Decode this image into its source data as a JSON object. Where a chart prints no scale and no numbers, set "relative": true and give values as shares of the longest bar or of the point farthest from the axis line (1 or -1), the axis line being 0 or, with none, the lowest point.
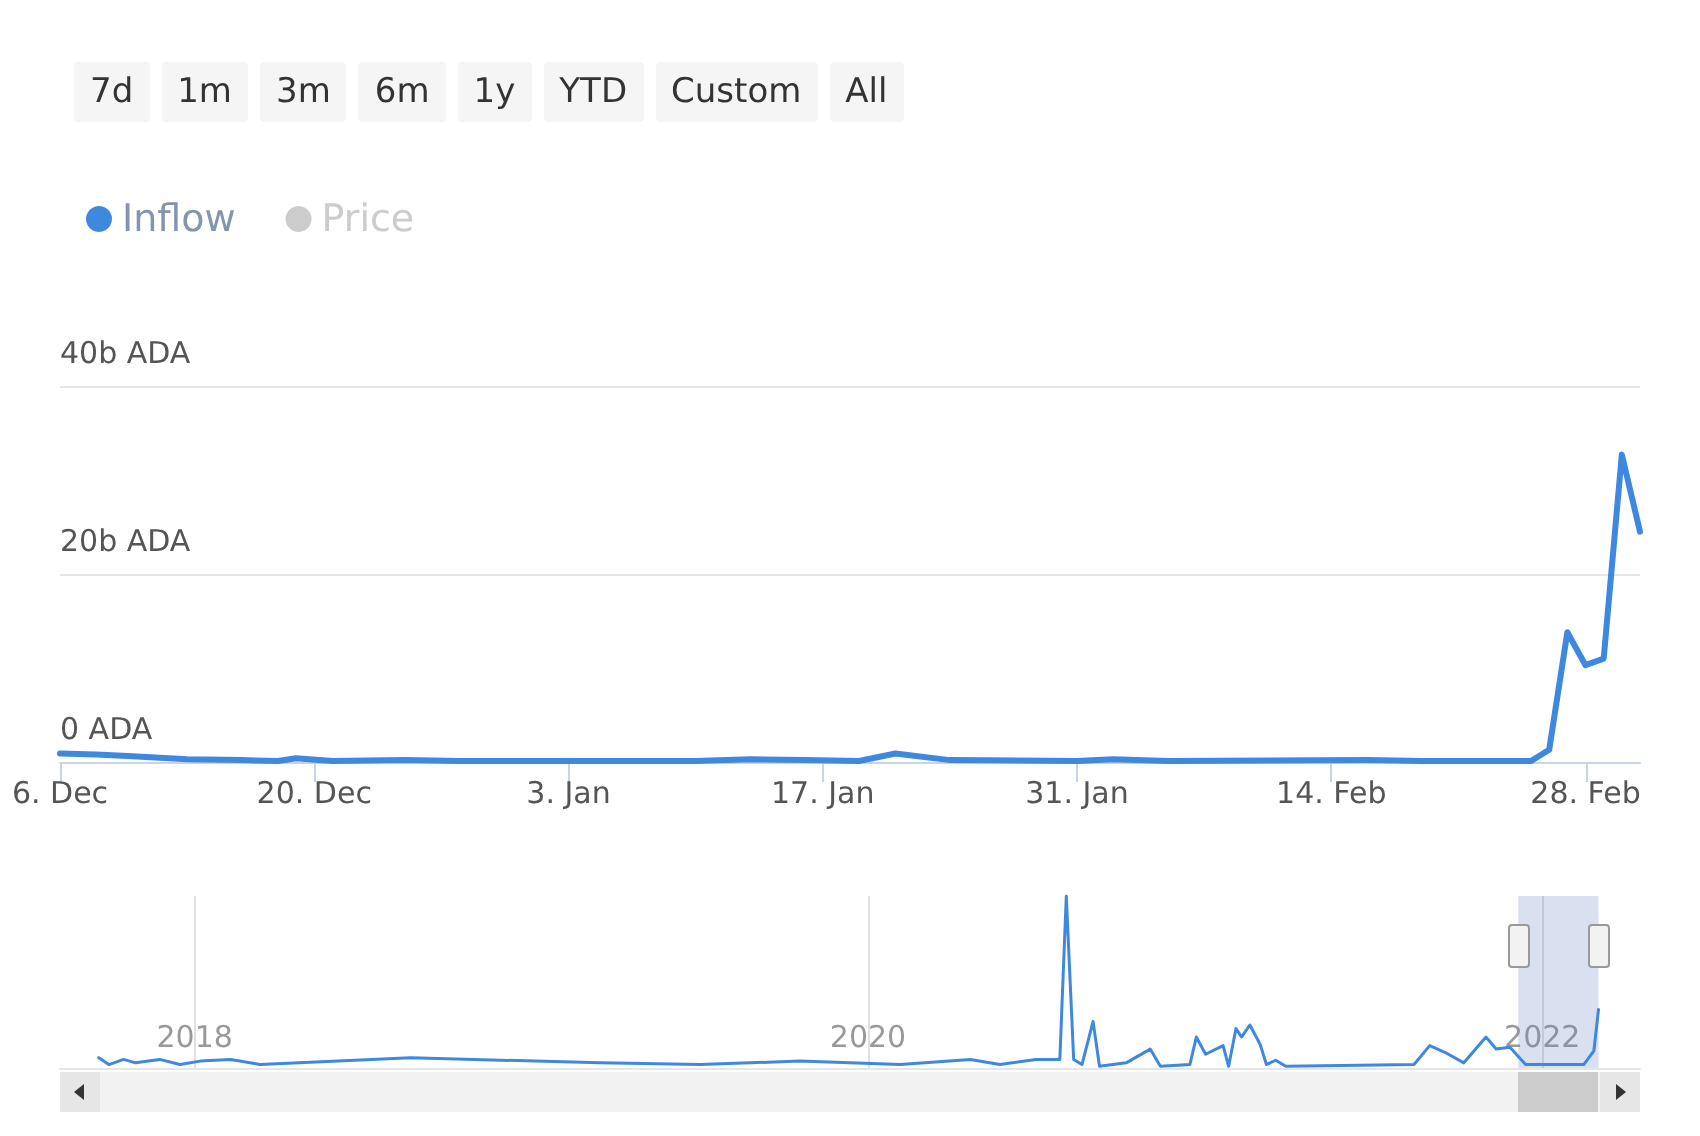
{
  "chart_data": [
    {
      "type": "line",
      "annotations": [
        "7d",
        "1m",
        "3m",
        "6m",
        "1y",
        "YTD",
        "Custom",
        "All"
      ],
      "x": [
        "2021-12-06",
        "2021-12-08",
        "2021-12-10",
        "2021-12-13",
        "2021-12-16",
        "2021-12-18",
        "2021-12-19",
        "2021-12-21",
        "2021-12-25",
        "2021-12-28",
        "2022-01-10",
        "2022-01-13",
        "2022-01-16",
        "2022-01-19",
        "2022-01-21",
        "2022-01-24",
        "2022-01-31",
        "2022-02-02",
        "2022-02-05",
        "2022-02-16",
        "2022-02-19",
        "2022-02-25",
        "2022-02-26",
        "2022-02-27",
        "2022-02-28",
        "2022-03-01",
        "2022-03-02",
        "2022-03-03"
      ],
      "series": [
        {
          "name": "Inflow",
          "color": "#3f88e0",
          "values": [
            0.9,
            0.8,
            0.6,
            0.3,
            0.2,
            0.1,
            0.4,
            0.1,
            0.2,
            0.1,
            0.1,
            0.3,
            0.2,
            0.1,
            0.9,
            0.2,
            0.1,
            0.3,
            0.1,
            0.2,
            0.1,
            0.1,
            1.3,
            13.8,
            10.3,
            11.0,
            32.7,
            24.5
          ]
        },
        {
          "name": "Price",
          "color": "#cccccc",
          "values": [
            null,
            null,
            null,
            null,
            null,
            null,
            null,
            null,
            null,
            null,
            null,
            null,
            null,
            null,
            null,
            null,
            null,
            null,
            null,
            null,
            null,
            null,
            null,
            null,
            null,
            null,
            null,
            null
          ]
        }
      ],
      "xlim": [
        "2021-12-06",
        "2022-03-03"
      ],
      "xticks": [
        {
          "value": "2021-12-06",
          "label": "6. Dec"
        },
        {
          "value": "2021-12-20",
          "label": "20. Dec"
        },
        {
          "value": "2022-01-03",
          "label": "3. Jan"
        },
        {
          "value": "2022-01-17",
          "label": "17. Jan"
        },
        {
          "value": "2022-01-31",
          "label": "31. Jan"
        },
        {
          "value": "2022-02-14",
          "label": "14. Feb"
        },
        {
          "value": "2022-02-28",
          "label": "28. Feb"
        }
      ],
      "ylim": [
        0,
        40
      ],
      "yticks": [
        {
          "value": 0,
          "label": "0 ADA"
        },
        {
          "value": 20,
          "label": "20b ADA"
        },
        {
          "value": 40,
          "label": "40b ADA"
        }
      ],
      "grid": "y",
      "legend": "top left",
      "marker": "none"
    },
    {
      "type": "line",
      "relative": true,
      "tick_labels": "x",
      "x": [
        "2017-09-19",
        "2017-09-30",
        "2017-10-16",
        "2017-10-29",
        "2017-11-24",
        "2017-12-16",
        "2018-01-07",
        "2018-02-09",
        "2018-03-13",
        "2018-08-23",
        "2019-03-16",
        "2019-07-03",
        "2019-10-19",
        "2020-02-05",
        "2020-04-21",
        "2020-05-23",
        "2020-07-01",
        "2020-07-27",
        "2020-08-03",
        "2020-08-11",
        "2020-08-20",
        "2020-09-01",
        "2020-09-08",
        "2020-10-07",
        "2020-11-02",
        "2020-11-13",
        "2020-12-15",
        "2020-12-22",
        "2021-01-01",
        "2021-01-20",
        "2021-01-26",
        "2021-02-03",
        "2021-02-09",
        "2021-02-18",
        "2021-03-01",
        "2021-03-08",
        "2021-03-18",
        "2021-03-29",
        "2021-08-15",
        "2021-09-01",
        "2021-09-18",
        "2021-10-08",
        "2021-11-01",
        "2021-11-12",
        "2021-11-27",
        "2021-12-14",
        "2022-02-15",
        "2022-02-26",
        "2022-03-03"
      ],
      "series": [
        {
          "color": "#3f88e0",
          "values": [
            0.06,
            0.02,
            0.05,
            0.03,
            0.05,
            0.02,
            0.04,
            0.05,
            0.02,
            0.06,
            0.03,
            0.02,
            0.04,
            0.02,
            0.05,
            0.02,
            0.05,
            0.05,
            1.0,
            0.05,
            0.02,
            0.27,
            0.01,
            0.03,
            0.11,
            0.01,
            0.02,
            0.18,
            0.08,
            0.13,
            0.01,
            0.23,
            0.18,
            0.25,
            0.14,
            0.02,
            0.045,
            0.01,
            0.02,
            0.13,
            0.09,
            0.03,
            0.18,
            0.11,
            0.12,
            0.02,
            0.02,
            0.1,
            0.34
          ]
        }
      ],
      "xlim": [
        "2017-08-08",
        "2022-04-17"
      ],
      "xticks": [
        {
          "value": "2018-01-01",
          "label": "2018"
        },
        {
          "value": "2020-01-01",
          "label": "2020"
        },
        {
          "value": "2022-01-01",
          "label": "2022"
        }
      ],
      "bands": [
        {
          "axis": "x",
          "from": "2021-12-06",
          "to": "2022-03-03",
          "color": "#6685c2"
        }
      ],
      "grid": "x",
      "marker": "none"
    }
  ]
}
